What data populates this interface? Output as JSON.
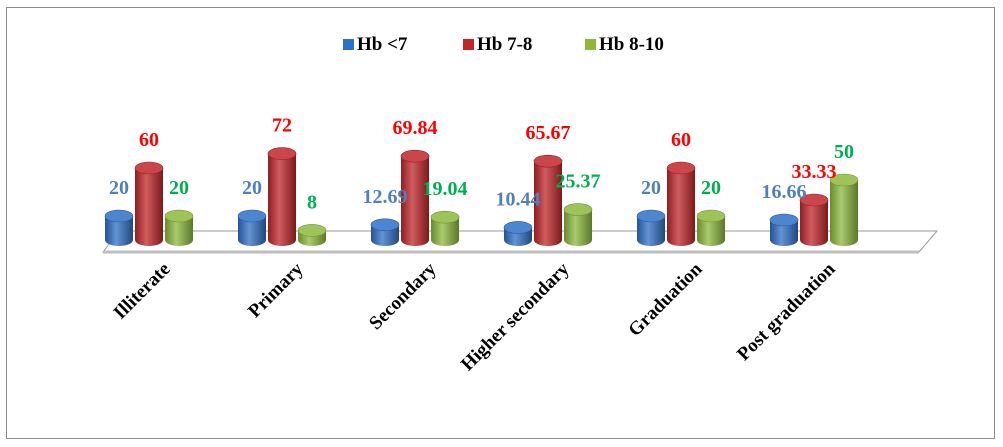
{
  "chart_data": {
    "type": "bar",
    "style": "3d-cylinder",
    "categories": [
      "Illiterate",
      "Primary",
      "Secondary",
      "Higher secondary",
      "Graduation",
      "Post graduation"
    ],
    "series": [
      {
        "name": "Hb <7",
        "values": [
          20,
          20,
          12.69,
          10.44,
          20,
          16.66
        ],
        "labels": [
          "20",
          "20",
          "12.69",
          "10.44",
          "20",
          "16.66"
        ],
        "color": "#2f6fc6",
        "label_color": "#4f81bd"
      },
      {
        "name": "Hb 7-8",
        "values": [
          60,
          72,
          69.84,
          65.67,
          60,
          33.33
        ],
        "labels": [
          "60",
          "72",
          "69.84",
          "65.67",
          "60",
          "33.33"
        ],
        "color": "#c0262a",
        "label_color": "#ff0000"
      },
      {
        "name": "Hb 8-10",
        "values": [
          20,
          8,
          19.04,
          25.37,
          20,
          50
        ],
        "labels": [
          "20",
          "8",
          "19.04",
          "25.37",
          "20",
          "50"
        ],
        "color": "#8cb83c",
        "label_color": "#00b050"
      }
    ],
    "legend_position": "top",
    "grid": false,
    "ylim": [
      0,
      100
    ]
  }
}
